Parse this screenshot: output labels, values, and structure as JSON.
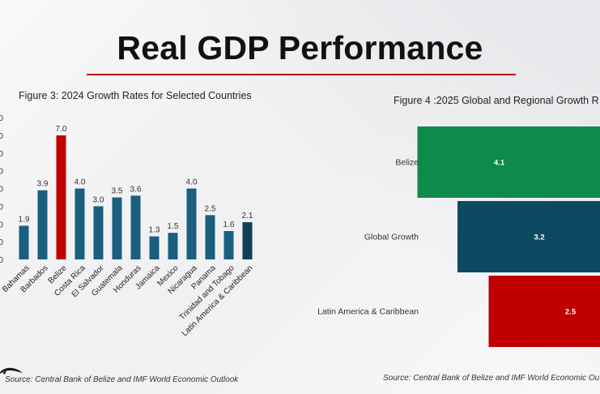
{
  "slide": {
    "title": "Real GDP Performance",
    "rule_color": "#c00000"
  },
  "figure3": {
    "title": "Figure 3: 2024 Growth Rates for Selected Countries",
    "source": "Source: Central Bank of Belize and IMF World Economic Outlook"
  },
  "figure4": {
    "title": "Figure 4 :2025 Global and Regional Growth R",
    "source": "Source: Central Bank of Belize and IMF World Economic Ou"
  },
  "chart_data": [
    {
      "type": "bar",
      "orientation": "vertical",
      "title": "Figure 3: 2024 Growth Rates for Selected Countries",
      "categories": [
        "Bahamas",
        "Barbados",
        "Belize",
        "Costa Rica",
        "El Salvador",
        "Guatemala",
        "Honduras",
        "Jamaica",
        "Mexico",
        "Nicaragua",
        "Panama",
        "Trinidad and Tobago",
        "Latin America & Caribbean"
      ],
      "values": [
        1.9,
        3.9,
        7.0,
        4.0,
        3.0,
        3.5,
        3.6,
        1.3,
        1.5,
        4.0,
        2.5,
        1.6,
        2.1
      ],
      "value_labels": [
        "1.9",
        "3.9",
        "7.0",
        "4.0",
        "3.0",
        "3.5",
        "3.6",
        "1.3",
        "1.5",
        "4.0",
        "2.5",
        "1.6",
        "2.1"
      ],
      "colors": [
        "#1a5f7e",
        "#1a5f7e",
        "#c00000",
        "#1a5f7e",
        "#1a5f7e",
        "#1a5f7e",
        "#1a5f7e",
        "#1a5f7e",
        "#1a5f7e",
        "#1a5f7e",
        "#1a5f7e",
        "#1a5f7e",
        "#0e3f55"
      ],
      "ylim": [
        0,
        8
      ],
      "yticks": [
        0,
        1,
        2,
        3,
        4,
        5,
        6,
        7,
        8
      ],
      "ytick_labels": [
        "0",
        "0",
        "0",
        "0",
        "0",
        "0",
        "0",
        "0",
        "0"
      ],
      "grid": false
    },
    {
      "type": "bar",
      "orientation": "horizontal",
      "title": "Figure 4 :2025 Global and Regional Growth R",
      "categories": [
        "Belize",
        "Global Growth",
        "Latin America & Caribbean"
      ],
      "values": [
        4.1,
        3.2,
        2.5
      ],
      "value_labels": [
        "4.1",
        "3.2",
        "2.5"
      ],
      "colors": [
        "#0e8a4a",
        "#0c4a62",
        "#c00000"
      ],
      "grid": false
    }
  ]
}
